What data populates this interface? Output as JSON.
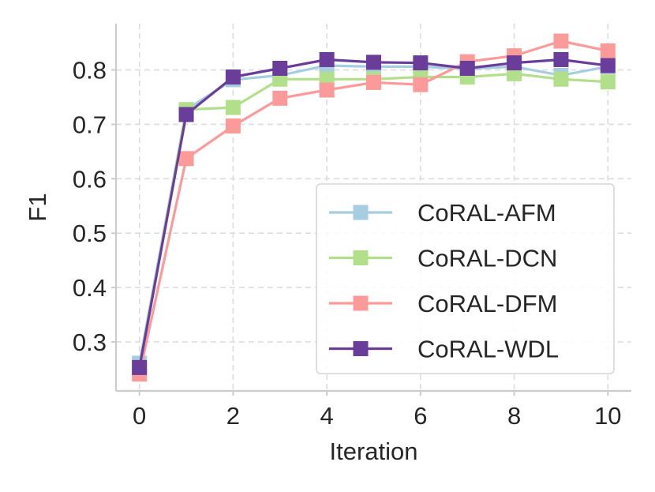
{
  "chart_data": {
    "type": "line",
    "title": "",
    "xlabel": "Iteration",
    "ylabel": "F1",
    "xlim": [
      -0.5,
      10.5
    ],
    "ylim": [
      0.21,
      0.885
    ],
    "xticks": [
      0,
      2,
      4,
      6,
      8,
      10
    ],
    "yticks": [
      0.3,
      0.4,
      0.5,
      0.6,
      0.7,
      0.8
    ],
    "grid": true,
    "legend_position": "lower-right",
    "x": [
      0,
      1,
      2,
      3,
      4,
      5,
      6,
      7,
      8,
      9,
      10
    ],
    "series": [
      {
        "name": "CoRAL-AFM",
        "color": "#a6cee3",
        "marker": "square",
        "values": [
          0.261,
          0.727,
          0.782,
          0.79,
          0.808,
          0.806,
          0.806,
          0.802,
          0.806,
          0.79,
          0.806
        ]
      },
      {
        "name": "CoRAL-DCN",
        "color": "#b2df8a",
        "marker": "square",
        "values": [
          0.248,
          0.727,
          0.731,
          0.783,
          0.783,
          0.783,
          0.787,
          0.787,
          0.793,
          0.783,
          0.778
        ]
      },
      {
        "name": "CoRAL-DFM",
        "color": "#fb9a99",
        "marker": "square",
        "values": [
          0.241,
          0.637,
          0.697,
          0.748,
          0.763,
          0.777,
          0.773,
          0.815,
          0.826,
          0.853,
          0.835
        ]
      },
      {
        "name": "CoRAL-WDL",
        "color": "#6a3d9a",
        "marker": "square",
        "values": [
          0.253,
          0.718,
          0.787,
          0.803,
          0.819,
          0.814,
          0.813,
          0.803,
          0.813,
          0.819,
          0.808
        ]
      }
    ]
  }
}
